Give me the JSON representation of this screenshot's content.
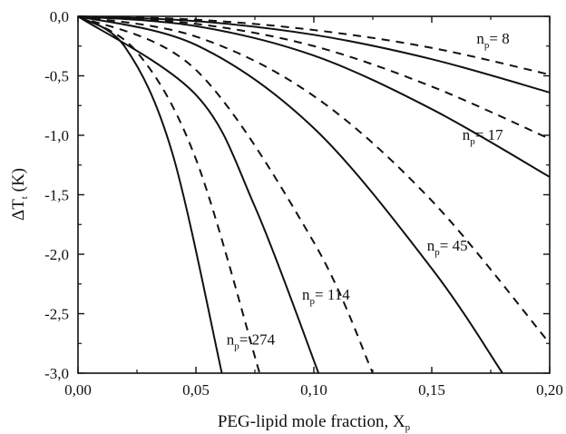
{
  "chart_data": {
    "type": "line",
    "xlabel": {
      "main": "PEG-lipid mole fraction, X",
      "sub": "p"
    },
    "ylabel": {
      "main": "ΔT",
      "sub": "t",
      "tail": " (K)"
    },
    "xlim": [
      0,
      0.2
    ],
    "ylim": [
      -3.0,
      0
    ],
    "x_ticks": [
      {
        "value": 0.0,
        "label": "0,00"
      },
      {
        "value": 0.05,
        "label": "0,05"
      },
      {
        "value": 0.1,
        "label": "0,10"
      },
      {
        "value": 0.15,
        "label": "0,15"
      },
      {
        "value": 0.2,
        "label": "0,20"
      }
    ],
    "y_ticks": [
      {
        "value": 0.0,
        "label": "0,0"
      },
      {
        "value": -0.5,
        "label": "-0,5"
      },
      {
        "value": -1.0,
        "label": "-1,0"
      },
      {
        "value": -1.5,
        "label": "-1,5"
      },
      {
        "value": -2.0,
        "label": "-2,0"
      },
      {
        "value": -2.5,
        "label": "-2,5"
      },
      {
        "value": -3.0,
        "label": "-3,0"
      }
    ],
    "grid": false,
    "legend": "none",
    "series": [
      {
        "style": "dashed",
        "x": [
          0,
          0.05,
          0.1,
          0.15,
          0.2
        ],
        "y": [
          0,
          -0.028,
          -0.115,
          -0.265,
          -0.49
        ]
      },
      {
        "style": "solid",
        "x": [
          0,
          0.05,
          0.1,
          0.15,
          0.2
        ],
        "y": [
          0,
          -0.04,
          -0.155,
          -0.36,
          -0.64
        ]
      },
      {
        "style": "dashed",
        "x": [
          0,
          0.05,
          0.1,
          0.15,
          0.2
        ],
        "y": [
          0,
          -0.063,
          -0.25,
          -0.59,
          -1.03
        ]
      },
      {
        "style": "solid",
        "x": [
          0,
          0.05,
          0.1,
          0.15,
          0.2
        ],
        "y": [
          0,
          -0.082,
          -0.33,
          -0.78,
          -1.35
        ]
      },
      {
        "style": "dashed",
        "x": [
          0,
          0.05,
          0.1,
          0.15,
          0.2
        ],
        "y": [
          0,
          -0.17,
          -0.67,
          -1.55,
          -2.75
        ]
      },
      {
        "style": "solid",
        "x": [
          0,
          0.05,
          0.1,
          0.15,
          0.18
        ],
        "y": [
          0,
          -0.24,
          -0.94,
          -2.12,
          -3.0
        ]
      },
      {
        "style": "dashed",
        "x": [
          0,
          0.05,
          0.1,
          0.125
        ],
        "y": [
          0,
          -0.45,
          -1.9,
          -3.0
        ]
      },
      {
        "style": "solid",
        "x": [
          0,
          0.05,
          0.075,
          0.102
        ],
        "y": [
          0,
          -0.66,
          -1.6,
          -3.0
        ]
      },
      {
        "style": "dashed",
        "x": [
          0,
          0.025,
          0.05,
          0.077
        ],
        "y": [
          0,
          -0.3,
          -1.2,
          -3.0
        ]
      },
      {
        "style": "solid",
        "x": [
          0,
          0.02,
          0.04,
          0.061
        ],
        "y": [
          0,
          -0.26,
          -1.15,
          -3.0
        ]
      }
    ],
    "annotations": [
      {
        "main": "n",
        "sub": "p",
        "text": "= 8",
        "x": 0.169,
        "y": -0.23
      },
      {
        "main": "n",
        "sub": "p",
        "text": "= 17",
        "x": 0.163,
        "y": -1.04
      },
      {
        "main": "n",
        "sub": "p",
        "text": "= 45",
        "x": 0.148,
        "y": -1.97
      },
      {
        "main": "n",
        "sub": "p",
        "text": "= 114",
        "x": 0.095,
        "y": -2.38
      },
      {
        "main": "n",
        "sub": "p",
        "text": "= 274",
        "x": 0.063,
        "y": -2.76
      }
    ]
  }
}
